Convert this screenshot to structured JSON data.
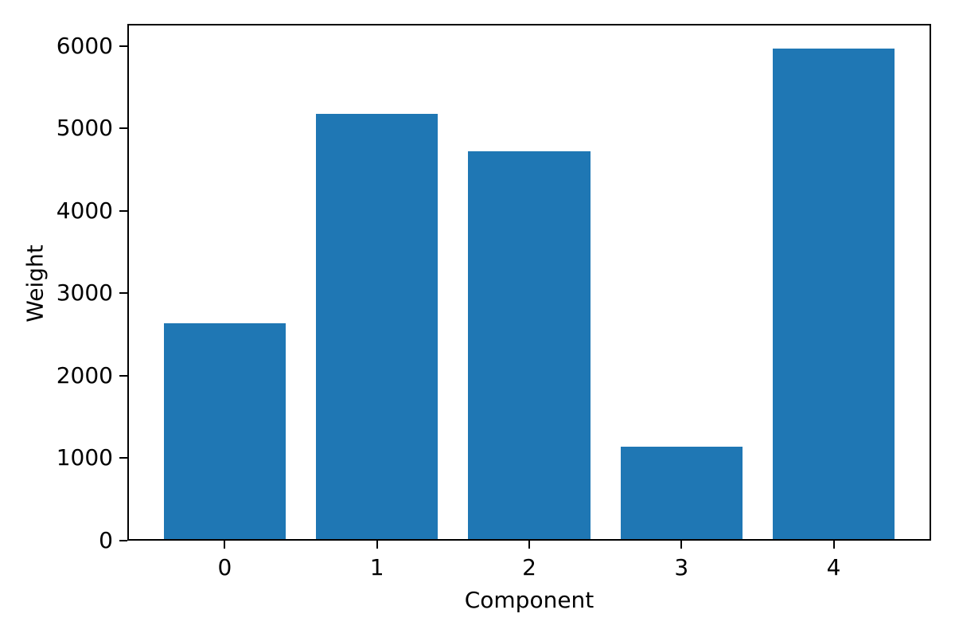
{
  "figure": {
    "background": "#ffffff",
    "axes_color": "#000000"
  },
  "chart_data": {
    "type": "bar",
    "title": "",
    "xlabel": "Component",
    "ylabel": "Weight",
    "categories": [
      "0",
      "1",
      "2",
      "3",
      "4"
    ],
    "values": [
      2640,
      5175,
      4725,
      1140,
      5970
    ],
    "bar_color": "#1f77b4",
    "bar_width": 0.8,
    "xlim": [
      -0.64,
      4.64
    ],
    "ylim": [
      0,
      6270
    ],
    "yticks": [
      0,
      1000,
      2000,
      3000,
      4000,
      5000,
      6000
    ],
    "grid": false,
    "legend": null
  }
}
